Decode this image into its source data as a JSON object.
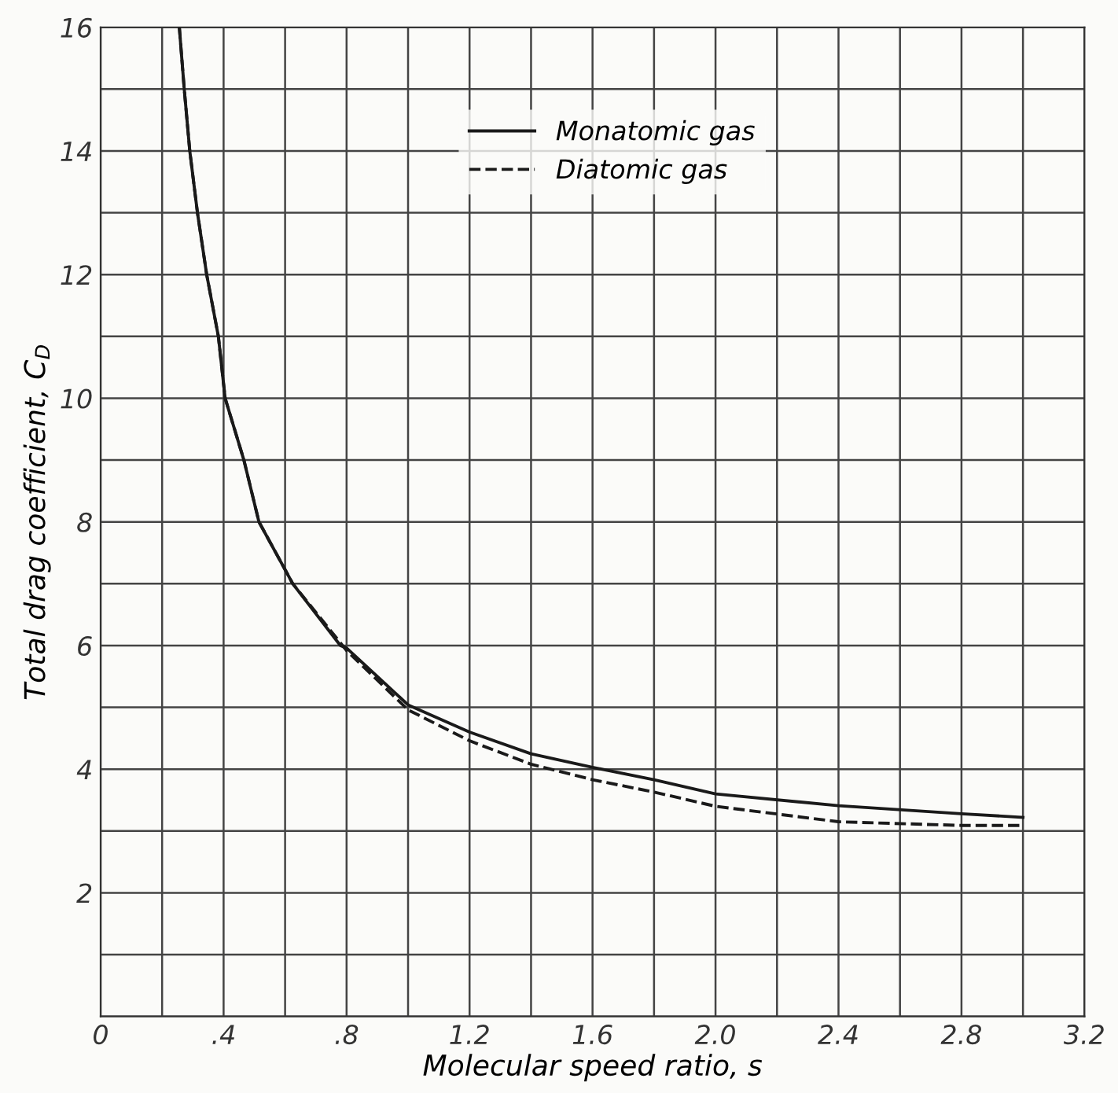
{
  "chart_data": {
    "type": "line",
    "xlabel": "Molecular speed ratio, s",
    "ylabel": "Total drag coefficient, C$_{D}$",
    "xlim": [
      0,
      3.2
    ],
    "ylim": [
      0,
      16
    ],
    "xticks": [
      0,
      {
        "value": 0.2,
        "label": null
      },
      {
        "value": 0.4,
        "label": ".4"
      },
      {
        "value": 0.6,
        "label": null
      },
      {
        "value": 0.8,
        "label": ".8"
      },
      {
        "value": 1.0,
        "label": null
      },
      {
        "value": 1.2,
        "label": "1.2"
      },
      {
        "value": 1.4,
        "label": null
      },
      {
        "value": 1.6,
        "label": "1.6"
      },
      {
        "value": 1.8,
        "label": null
      },
      {
        "value": 2.0,
        "label": "2.0"
      },
      {
        "value": 2.2,
        "label": null
      },
      {
        "value": 2.4,
        "label": "2.4"
      },
      {
        "value": 2.6,
        "label": null
      },
      {
        "value": 2.8,
        "label": "2.8"
      },
      {
        "value": 3.0,
        "label": null
      },
      {
        "value": 3.2,
        "label": "3.2"
      }
    ],
    "yticks": [
      {
        "value": 0,
        "label": null
      },
      {
        "value": 1,
        "label": null
      },
      2,
      {
        "value": 3,
        "label": null
      },
      4,
      {
        "value": 5,
        "label": null
      },
      6,
      {
        "value": 7,
        "label": null
      },
      8,
      {
        "value": 9,
        "label": null
      },
      10,
      {
        "value": 11,
        "label": null
      },
      12,
      {
        "value": 13,
        "label": null
      },
      14,
      {
        "value": 15,
        "label": null
      },
      16
    ],
    "grid": true,
    "legend": "top",
    "marker": "none",
    "series": [
      {
        "name": "Monatomic gas",
        "color": "#1a1a1a",
        "line_style": "solid",
        "x": [
          0.256,
          0.272,
          0.29,
          0.315,
          0.345,
          0.383,
          0.405,
          0.466,
          0.515,
          0.625,
          0.78,
          0.8,
          1.0,
          1.2,
          1.4,
          1.6,
          1.8,
          2.0,
          2.4,
          2.8,
          3.0
        ],
        "values": [
          16,
          15,
          14,
          13,
          12,
          11,
          10,
          9,
          8,
          7,
          6,
          5.96,
          5.04,
          4.6,
          4.25,
          4.03,
          3.83,
          3.6,
          3.41,
          3.28,
          3.22
        ]
      },
      {
        "name": "Diatomic gas",
        "color": "#1a1a1a",
        "line_style": "dashed",
        "x": [
          0.256,
          0.272,
          0.29,
          0.315,
          0.345,
          0.383,
          0.405,
          0.466,
          0.515,
          0.625,
          0.8,
          1.0,
          1.2,
          1.4,
          1.6,
          1.8,
          2.0,
          2.4,
          2.8,
          3.0
        ],
        "values": [
          16,
          15,
          14,
          13,
          12,
          11,
          10,
          9,
          8,
          7,
          5.92,
          4.96,
          4.46,
          4.08,
          3.83,
          3.63,
          3.4,
          3.15,
          3.09,
          3.09
        ]
      }
    ]
  }
}
